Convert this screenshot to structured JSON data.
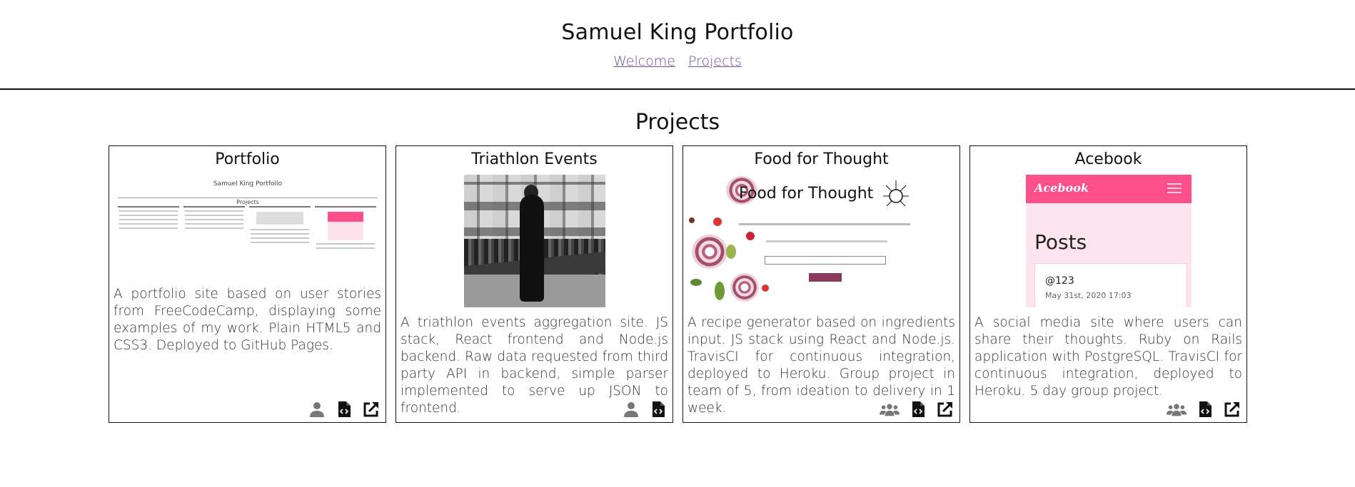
{
  "header": {
    "title": "Samuel King Portfolio",
    "nav": [
      "Welcome",
      "Projects"
    ]
  },
  "section": {
    "title": "Projects"
  },
  "cards": [
    {
      "title": "Portfolio",
      "description": "A portfolio site based on user stories from FreeCodeCamp, displaying some examples of my work. Plain HTML5 and CSS3. Deployed to GitHub Pages.",
      "icons": [
        "user-icon",
        "code-file-icon",
        "external-link-icon"
      ],
      "thumb": {
        "mini_title": "Samuel King Portfolio",
        "mini_projects": "Projects"
      }
    },
    {
      "title": "Triathlon Events",
      "description": "A triathlon events aggregation site. JS stack, React frontend and Node.js backend. Raw data requested from third party API in backend, simple parser implemented to serve up JSON to frontend.",
      "icons": [
        "user-icon",
        "code-file-icon"
      ]
    },
    {
      "title": "Food for Thought",
      "description": "A recipe generator based on ingredients input. JS stack using React and Node.js. TravisCI for continuous integration, deployed to Heroku. Group project in team of 5, from ideation to delivery in 1 week.",
      "icons": [
        "users-icon",
        "code-file-icon",
        "external-link-icon"
      ],
      "thumb": {
        "title": "Food for Thought"
      }
    },
    {
      "title": "Acebook",
      "description": "A social media site where users can share their thoughts. Ruby on Rails application with PostgreSQL. TravisCI for continuous integration, deployed to Heroku. 5 day group project.",
      "icons": [
        "users-icon",
        "code-file-icon",
        "external-link-icon"
      ],
      "thumb": {
        "logo": "Acebook",
        "heading": "Posts",
        "post_user": "@123",
        "post_date": "May 31st, 2020 17:03"
      }
    }
  ],
  "colors": {
    "link": "#6a4fa3",
    "acebook_pink": "#ff4f8b",
    "icon": "#111111",
    "icon_muted": "#777777"
  }
}
